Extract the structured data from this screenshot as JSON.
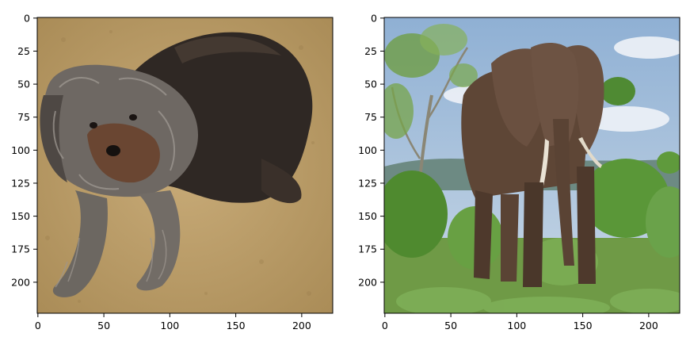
{
  "figure": {
    "panels": [
      {
        "subject": "dog",
        "description": "Long-haired dark grey and brown dog lying on a beige carpet",
        "colors": {
          "background": "#b99a66",
          "fur_dark": "#2e2723",
          "fur_grey": "#7c7671",
          "fur_brown": "#6b4a35"
        },
        "x_ticks": [
          "0",
          "50",
          "100",
          "150",
          "200"
        ],
        "y_ticks": [
          "0",
          "25",
          "50",
          "75",
          "100",
          "125",
          "150",
          "175",
          "200"
        ]
      },
      {
        "subject": "elephant",
        "description": "African elephant standing among green bushes under a blue cloudy sky",
        "colors": {
          "sky": "#9bb8d6",
          "cloud": "#e6edf4",
          "foliage": "#5f9a3c",
          "elephant": "#5e4636"
        },
        "x_ticks": [
          "0",
          "50",
          "100",
          "150",
          "200"
        ],
        "y_ticks": [
          "0",
          "25",
          "50",
          "75",
          "100",
          "125",
          "150",
          "175",
          "200"
        ]
      }
    ]
  }
}
